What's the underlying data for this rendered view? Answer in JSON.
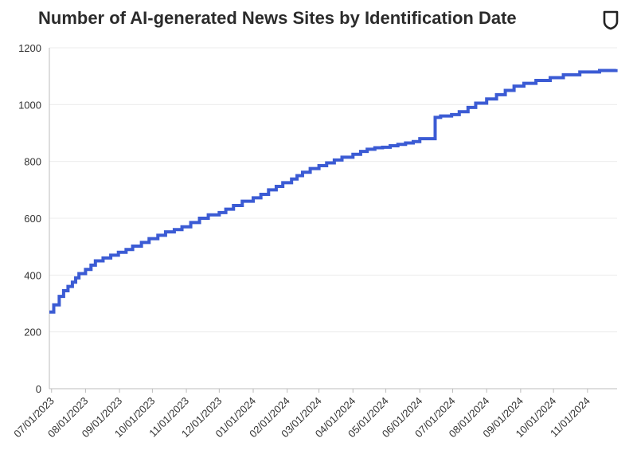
{
  "title": "Number of AI-generated News Sites by Identification Date",
  "brand_icon": "shield-icon",
  "colors": {
    "line": "#3b5bd4",
    "grid": "#ececec",
    "text": "#333333",
    "title": "#2b2b2b"
  },
  "chart_data": {
    "type": "line",
    "title": "Number of AI-generated News Sites by Identification Date",
    "xlabel": "",
    "ylabel": "",
    "ylim": [
      0,
      1200
    ],
    "yticks": [
      0,
      200,
      400,
      600,
      800,
      1000,
      1200
    ],
    "grid": true,
    "legend": "none",
    "step": true,
    "xlim": [
      "2023-06-29",
      "2024-11-28"
    ],
    "xtick_dates": [
      "2023-07-01",
      "2023-08-01",
      "2023-09-01",
      "2023-10-01",
      "2023-11-01",
      "2023-12-01",
      "2024-01-01",
      "2024-02-01",
      "2024-03-01",
      "2024-04-01",
      "2024-05-01",
      "2024-06-01",
      "2024-07-01",
      "2024-08-01",
      "2024-09-01",
      "2024-10-01",
      "2024-11-01"
    ],
    "xtick_labels": [
      "07/01/2023",
      "08/01/2023",
      "09/01/2023",
      "10/01/2023",
      "11/01/2023",
      "12/01/2023",
      "01/01/2024",
      "02/01/2024",
      "03/01/2024",
      "04/01/2024",
      "05/01/2024",
      "06/01/2024",
      "07/01/2024",
      "08/01/2024",
      "09/01/2024",
      "10/01/2024",
      "11/01/2024"
    ],
    "series": [
      {
        "name": "",
        "x": [
          "2023-06-29",
          "2023-07-03",
          "2023-07-08",
          "2023-07-12",
          "2023-07-16",
          "2023-07-20",
          "2023-07-23",
          "2023-07-26",
          "2023-08-01",
          "2023-08-06",
          "2023-08-10",
          "2023-08-17",
          "2023-08-24",
          "2023-08-31",
          "2023-09-07",
          "2023-09-13",
          "2023-09-21",
          "2023-09-28",
          "2023-10-06",
          "2023-10-13",
          "2023-10-21",
          "2023-10-28",
          "2023-11-05",
          "2023-11-13",
          "2023-11-21",
          "2023-12-01",
          "2023-12-07",
          "2023-12-14",
          "2023-12-22",
          "2024-01-01",
          "2024-01-08",
          "2024-01-15",
          "2024-01-22",
          "2024-01-28",
          "2024-02-05",
          "2024-02-10",
          "2024-02-15",
          "2024-02-22",
          "2024-03-01",
          "2024-03-08",
          "2024-03-15",
          "2024-03-22",
          "2024-04-01",
          "2024-04-08",
          "2024-04-14",
          "2024-04-21",
          "2024-04-28",
          "2024-05-05",
          "2024-05-12",
          "2024-05-19",
          "2024-05-26",
          "2024-06-01",
          "2024-06-15",
          "2024-06-20",
          "2024-06-30",
          "2024-07-07",
          "2024-07-15",
          "2024-07-22",
          "2024-08-01",
          "2024-08-10",
          "2024-08-18",
          "2024-08-26",
          "2024-09-04",
          "2024-09-15",
          "2024-09-28",
          "2024-10-10",
          "2024-10-25",
          "2024-11-12",
          "2024-11-27"
        ],
        "values": [
          270,
          295,
          325,
          345,
          360,
          375,
          390,
          405,
          420,
          435,
          450,
          460,
          470,
          480,
          490,
          502,
          515,
          528,
          540,
          552,
          560,
          570,
          585,
          600,
          612,
          620,
          632,
          645,
          660,
          672,
          684,
          700,
          712,
          725,
          738,
          750,
          762,
          775,
          785,
          795,
          805,
          815,
          825,
          835,
          843,
          848,
          850,
          855,
          860,
          865,
          870,
          880,
          955,
          960,
          965,
          975,
          990,
          1005,
          1020,
          1035,
          1050,
          1065,
          1075,
          1085,
          1095,
          1105,
          1115,
          1120,
          1125
        ]
      }
    ]
  }
}
